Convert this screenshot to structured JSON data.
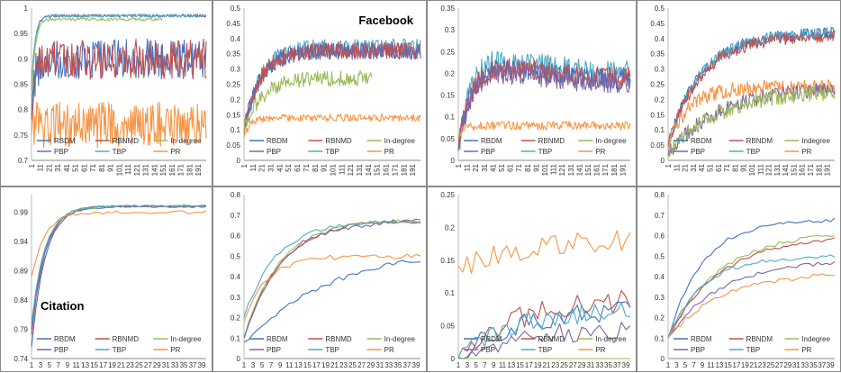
{
  "palette": {
    "RBDM": "#4472c4",
    "RBNMD": "#c0504d",
    "In-degree": "#9bbb59",
    "PBP": "#8064a2",
    "TBP": "#4bacc6",
    "PR": "#f79646"
  },
  "x_ticks_long": [
    "1",
    "11",
    "21",
    "31",
    "41",
    "51",
    "61",
    "71",
    "81",
    "91",
    "101",
    "111",
    "121",
    "131",
    "141",
    "151",
    "161",
    "171",
    "181",
    "191"
  ],
  "x_ticks_short": [
    "1",
    "3",
    "5",
    "7",
    "9",
    "11",
    "13",
    "15",
    "17",
    "19",
    "21",
    "23",
    "25",
    "27",
    "29",
    "31",
    "33",
    "35",
    "37",
    "39"
  ],
  "chart_data": [
    {
      "id": "p1",
      "type": "line",
      "title": "",
      "x_kind": "long",
      "ylim": [
        0.7,
        1
      ],
      "yticks": [
        "0.7",
        "0.75",
        "0.8",
        "0.85",
        "0.9",
        "0.95",
        "1"
      ],
      "legend": [
        "RBDM",
        "RBNMD",
        "In-degree",
        "PBP",
        "TBP",
        "PR"
      ],
      "series": [
        {
          "name": "PBP",
          "shape": "sat",
          "level": 0.985,
          "start": 0.84,
          "rise": 4,
          "noise": 0.003
        },
        {
          "name": "TBP",
          "shape": "sat",
          "level": 0.985,
          "start": 0.84,
          "rise": 4,
          "noise": 0.003
        },
        {
          "name": "In-degree",
          "shape": "sat",
          "level": 0.978,
          "start": 0.82,
          "rise": 4,
          "noise": 0.003,
          "len": 150
        },
        {
          "name": "RBDM",
          "shape": "sat",
          "level": 0.9,
          "start": 0.8,
          "rise": 4,
          "noise": 0.04
        },
        {
          "name": "RBNMD",
          "shape": "sat",
          "level": 0.9,
          "start": 0.8,
          "rise": 4,
          "noise": 0.04
        },
        {
          "name": "PR",
          "shape": "flat",
          "level": 0.77,
          "noise": 0.045
        }
      ]
    },
    {
      "id": "p2",
      "type": "line",
      "title": "Facebook",
      "x_kind": "long",
      "ylim": [
        0,
        0.5
      ],
      "yticks": [
        "0",
        "0.05",
        "0.1",
        "0.15",
        "0.2",
        "0.25",
        "0.3",
        "0.35",
        "0.4",
        "0.45",
        "0.5"
      ],
      "legend": [
        "RBDM",
        "RBNMD",
        "In-degree",
        "PBP",
        "TBP",
        "PR"
      ],
      "series": [
        {
          "name": "TBP",
          "shape": "sat",
          "level": 0.37,
          "start": 0.1,
          "rise": 18,
          "noise": 0.03
        },
        {
          "name": "PBP",
          "shape": "sat",
          "level": 0.36,
          "start": 0.1,
          "rise": 18,
          "noise": 0.028
        },
        {
          "name": "RBDM",
          "shape": "sat",
          "level": 0.36,
          "start": 0.1,
          "rise": 18,
          "noise": 0.028
        },
        {
          "name": "RBNMD",
          "shape": "sat",
          "level": 0.36,
          "start": 0.1,
          "rise": 18,
          "noise": 0.028
        },
        {
          "name": "In-degree",
          "shape": "sat",
          "level": 0.27,
          "start": 0.1,
          "rise": 20,
          "noise": 0.025,
          "len": 145
        },
        {
          "name": "PR",
          "shape": "sat",
          "level": 0.14,
          "start": 0.08,
          "rise": 8,
          "noise": 0.012
        }
      ]
    },
    {
      "id": "p3",
      "type": "line",
      "title": "",
      "x_kind": "long",
      "ylim": [
        0,
        0.35
      ],
      "yticks": [
        "0",
        "0.05",
        "0.1",
        "0.15",
        "0.2",
        "0.25",
        "0.3",
        "0.35"
      ],
      "legend": [
        "RBDM",
        "RBNMD",
        "In-degree",
        "PBP",
        "TBP",
        "PR"
      ],
      "series": [
        {
          "name": "TBP",
          "shape": "hump",
          "level": 0.2,
          "peak": 0.24,
          "start": 0.03,
          "rise": 15,
          "noise": 0.03
        },
        {
          "name": "RBDM",
          "shape": "hump",
          "level": 0.19,
          "peak": 0.22,
          "start": 0.03,
          "rise": 15,
          "noise": 0.025
        },
        {
          "name": "RBNMD",
          "shape": "hump",
          "level": 0.19,
          "peak": 0.22,
          "start": 0.03,
          "rise": 15,
          "noise": 0.025
        },
        {
          "name": "PBP",
          "shape": "hump",
          "level": 0.18,
          "peak": 0.21,
          "start": 0.03,
          "rise": 15,
          "noise": 0.025
        },
        {
          "name": "PR",
          "shape": "sat",
          "level": 0.08,
          "start": 0.05,
          "rise": 6,
          "noise": 0.01
        }
      ]
    },
    {
      "id": "p4",
      "type": "line",
      "title": "",
      "x_kind": "long",
      "ylim": [
        0,
        0.5
      ],
      "yticks": [
        "0",
        "0.05",
        "0.1",
        "0.15",
        "0.2",
        "0.25",
        "0.3",
        "0.35",
        "0.4",
        "0.45",
        "0.5"
      ],
      "legend": [
        "RBDM",
        "RBNDM",
        "Indegree",
        "PBP",
        "TBP",
        "PR"
      ],
      "series": [
        {
          "name": "RBDM",
          "shape": "sat",
          "level": 0.42,
          "start": 0.05,
          "rise": 40,
          "noise": 0.02
        },
        {
          "name": "TBP",
          "shape": "sat",
          "level": 0.42,
          "start": 0.05,
          "rise": 40,
          "noise": 0.02
        },
        {
          "name": "RBNMD",
          "shape": "sat",
          "level": 0.41,
          "start": 0.05,
          "rise": 40,
          "noise": 0.02
        },
        {
          "name": "PR",
          "shape": "sat",
          "level": 0.24,
          "start": 0.05,
          "rise": 25,
          "noise": 0.025
        },
        {
          "name": "PBP",
          "shape": "sat",
          "level": 0.24,
          "start": 0.02,
          "rise": 60,
          "noise": 0.025
        },
        {
          "name": "In-degree",
          "shape": "sat",
          "level": 0.23,
          "start": 0.02,
          "rise": 60,
          "noise": 0.025
        }
      ]
    },
    {
      "id": "p5",
      "type": "line",
      "title": "Citation",
      "x_kind": "short",
      "ylim": [
        0.74,
        1.02
      ],
      "yticks": [
        "0.74",
        "0.79",
        "0.84",
        "0.89",
        "0.94",
        "0.99"
      ],
      "legend": [
        "RBDM",
        "RBNMD",
        "In-degree",
        "PBP",
        "TBP",
        "PR"
      ],
      "series": [
        {
          "name": "RBDM",
          "shape": "sat",
          "level": 1.0,
          "start": 0.76,
          "rise": 3,
          "noise": 0.002
        },
        {
          "name": "RBNMD",
          "shape": "sat",
          "level": 1.0,
          "start": 0.78,
          "rise": 3,
          "noise": 0.002
        },
        {
          "name": "In-degree",
          "shape": "sat",
          "level": 1.0,
          "start": 0.8,
          "rise": 3,
          "noise": 0.002
        },
        {
          "name": "PBP",
          "shape": "sat",
          "level": 1.0,
          "start": 0.79,
          "rise": 3,
          "noise": 0.002
        },
        {
          "name": "TBP",
          "shape": "sat",
          "level": 1.0,
          "start": 0.8,
          "rise": 3,
          "noise": 0.002
        },
        {
          "name": "PR",
          "shape": "sat",
          "level": 0.99,
          "start": 0.88,
          "rise": 3,
          "noise": 0.003
        }
      ]
    },
    {
      "id": "p6",
      "type": "line",
      "title": "",
      "x_kind": "short",
      "ylim": [
        0,
        0.8
      ],
      "yticks": [
        "0",
        "0.1",
        "0.2",
        "0.3",
        "0.4",
        "0.5",
        "0.6",
        "0.7",
        "0.8"
      ],
      "legend": [
        "RBDM",
        "RBNMD",
        "In-degree",
        "PBP",
        "TBP",
        "PR"
      ],
      "series": [
        {
          "name": "RBNMD",
          "shape": "sat",
          "level": 0.68,
          "start": 0.1,
          "rise": 8,
          "noise": 0.01
        },
        {
          "name": "In-degree",
          "shape": "sat",
          "level": 0.68,
          "start": 0.1,
          "rise": 8,
          "noise": 0.01
        },
        {
          "name": "PBP",
          "shape": "sat",
          "level": 0.67,
          "start": 0.1,
          "rise": 8,
          "noise": 0.01
        },
        {
          "name": "TBP",
          "shape": "sat",
          "level": 0.67,
          "start": 0.2,
          "rise": 7,
          "noise": 0.01
        },
        {
          "name": "PR",
          "shape": "sat",
          "level": 0.5,
          "start": 0.18,
          "rise": 5,
          "noise": 0.012
        },
        {
          "name": "RBDM",
          "shape": "sat",
          "level": 0.55,
          "start": 0.08,
          "rise": 20,
          "noise": 0.012
        }
      ]
    },
    {
      "id": "p7",
      "type": "line",
      "title": "",
      "x_kind": "short",
      "ylim": [
        0,
        0.25
      ],
      "yticks": [
        "0",
        "0.05",
        "0.1",
        "0.15",
        "0.2",
        "0.25"
      ],
      "legend": [
        "RBDM",
        "RBNMD",
        "In-degree",
        "PBP",
        "TBP",
        "PR"
      ],
      "series": [
        {
          "name": "PR",
          "shape": "sat",
          "level": 0.19,
          "start": 0.14,
          "rise": 20,
          "noise": 0.018
        },
        {
          "name": "RBNMD",
          "shape": "sat",
          "level": 0.09,
          "start": 0.0,
          "rise": 12,
          "noise": 0.018
        },
        {
          "name": "RBDM",
          "shape": "sat",
          "level": 0.075,
          "start": 0.0,
          "rise": 12,
          "noise": 0.015
        },
        {
          "name": "TBP",
          "shape": "sat",
          "level": 0.075,
          "start": 0.0,
          "rise": 12,
          "noise": 0.015
        },
        {
          "name": "PBP",
          "shape": "sat",
          "level": 0.045,
          "start": 0.0,
          "rise": 12,
          "noise": 0.015
        },
        {
          "name": "In-degree",
          "shape": "flat",
          "level": 0.0,
          "noise": 0.0
        }
      ]
    },
    {
      "id": "p8",
      "type": "line",
      "title": "",
      "x_kind": "short",
      "ylim": [
        0,
        0.8
      ],
      "yticks": [
        "0",
        "0.1",
        "0.2",
        "0.3",
        "0.4",
        "0.5",
        "0.6",
        "0.7",
        "0.8"
      ],
      "legend": [
        "RBDM",
        "RBNDM",
        "Indegree",
        "PBP",
        "TBP",
        "PR"
      ],
      "series": [
        {
          "name": "RBDM",
          "shape": "sat",
          "level": 0.68,
          "start": 0.1,
          "rise": 8,
          "noise": 0.01
        },
        {
          "name": "In-degree",
          "shape": "sat",
          "level": 0.62,
          "start": 0.1,
          "rise": 12,
          "noise": 0.01
        },
        {
          "name": "RBNMD",
          "shape": "sat",
          "level": 0.6,
          "start": 0.1,
          "rise": 12,
          "noise": 0.01
        },
        {
          "name": "TBP",
          "shape": "sat",
          "level": 0.5,
          "start": 0.1,
          "rise": 8,
          "noise": 0.01
        },
        {
          "name": "PBP",
          "shape": "sat",
          "level": 0.48,
          "start": 0.1,
          "rise": 12,
          "noise": 0.01
        },
        {
          "name": "PR",
          "shape": "sat",
          "level": 0.42,
          "start": 0.1,
          "rise": 12,
          "noise": 0.012
        }
      ]
    }
  ]
}
